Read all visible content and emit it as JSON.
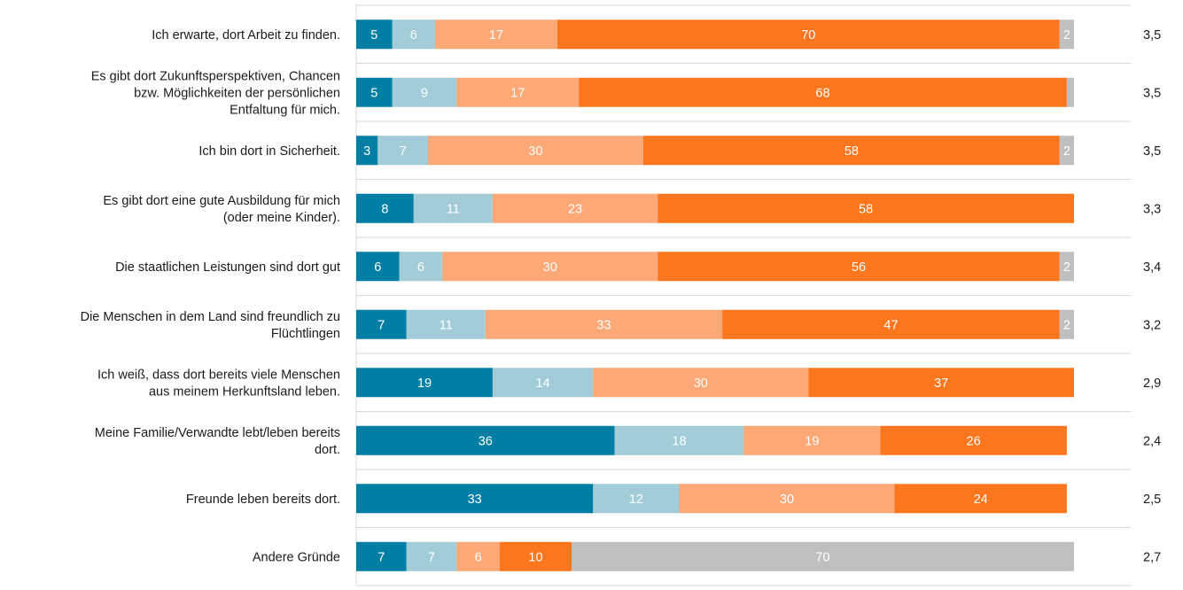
{
  "chart_data": {
    "type": "bar",
    "orientation": "horizontal",
    "stacked": true,
    "legend": "none",
    "xlim": [
      0,
      100
    ],
    "categories": [
      "Ich erwarte, dort Arbeit zu finden.",
      "Es gibt dort Zukunftsperspektiven, Chancen bzw. Möglichkeiten der persönlichen Entfaltung für mich.",
      "Ich bin dort in Sicherheit.",
      "Es gibt dort eine gute Ausbildung für mich (oder meine Kinder).",
      "Die staatlichen Leistungen sind dort gut",
      "Die Menschen in dem Land sind freundlich zu Flüchtlingen",
      "Ich weiß, dass dort bereits viele Menschen aus meinem Herkunftsland leben.",
      "Meine Familie/Verwandte lebt/leben bereits dort.",
      "Freunde leben bereits dort.",
      "Andere Gründe"
    ],
    "category_lines": [
      [
        "Ich erwarte, dort Arbeit zu finden."
      ],
      [
        "Es gibt dort Zukunftsperspektiven, Chancen",
        "bzw. Möglichkeiten der persönlichen",
        "Entfaltung für mich."
      ],
      [
        "Ich bin dort in Sicherheit."
      ],
      [
        "Es gibt dort eine gute Ausbildung für mich",
        "(oder meine Kinder)."
      ],
      [
        "Die staatlichen Leistungen sind dort gut"
      ],
      [
        "Die Menschen in dem Land sind freundlich zu",
        "Flüchtlingen"
      ],
      [
        "Ich weiß, dass dort bereits viele Menschen",
        "aus meinem Herkunftsland leben."
      ],
      [
        "Meine Familie/Verwandte lebt/leben bereits",
        "dort."
      ],
      [
        "Freunde leben bereits dort."
      ],
      [
        "Andere Gründe"
      ]
    ],
    "series": [
      {
        "color": "#007ea3",
        "label_color": "#ffffff",
        "values": [
          5,
          5,
          3,
          8,
          6,
          7,
          19,
          36,
          33,
          7
        ]
      },
      {
        "color": "#a1ccd8",
        "label_color": "#ffffff",
        "values": [
          6,
          9,
          7,
          11,
          6,
          11,
          14,
          18,
          12,
          7
        ]
      },
      {
        "color": "#fca977",
        "label_color": "#ffffff",
        "values": [
          17,
          17,
          30,
          23,
          30,
          33,
          30,
          19,
          30,
          6
        ]
      },
      {
        "color": "#fc761e",
        "label_color": "#ffffff",
        "values": [
          70,
          68,
          58,
          58,
          56,
          47,
          37,
          26,
          24,
          10
        ]
      },
      {
        "color": "#bfbfbf",
        "label_color": "#ffffff",
        "values": [
          2,
          1,
          2,
          0,
          2,
          2,
          0,
          0,
          0,
          70
        ]
      }
    ],
    "labels_shown": [
      [
        true,
        true,
        true,
        true,
        true
      ],
      [
        true,
        true,
        true,
        true,
        false
      ],
      [
        true,
        true,
        true,
        true,
        true
      ],
      [
        true,
        true,
        true,
        true,
        false
      ],
      [
        true,
        true,
        true,
        true,
        true
      ],
      [
        true,
        true,
        true,
        true,
        true
      ],
      [
        true,
        true,
        true,
        true,
        false
      ],
      [
        true,
        true,
        true,
        true,
        false
      ],
      [
        true,
        true,
        true,
        true,
        false
      ],
      [
        true,
        true,
        true,
        true,
        true
      ]
    ],
    "means": [
      "3,5",
      "3,5",
      "3,5",
      "3,3",
      "3,4",
      "3,2",
      "2,9",
      "2,4",
      "2,5",
      "2,7"
    ],
    "colors": {
      "separator": "#d9d9d9",
      "axis": "#d9d9d9",
      "text": "#1a1a1a"
    }
  }
}
